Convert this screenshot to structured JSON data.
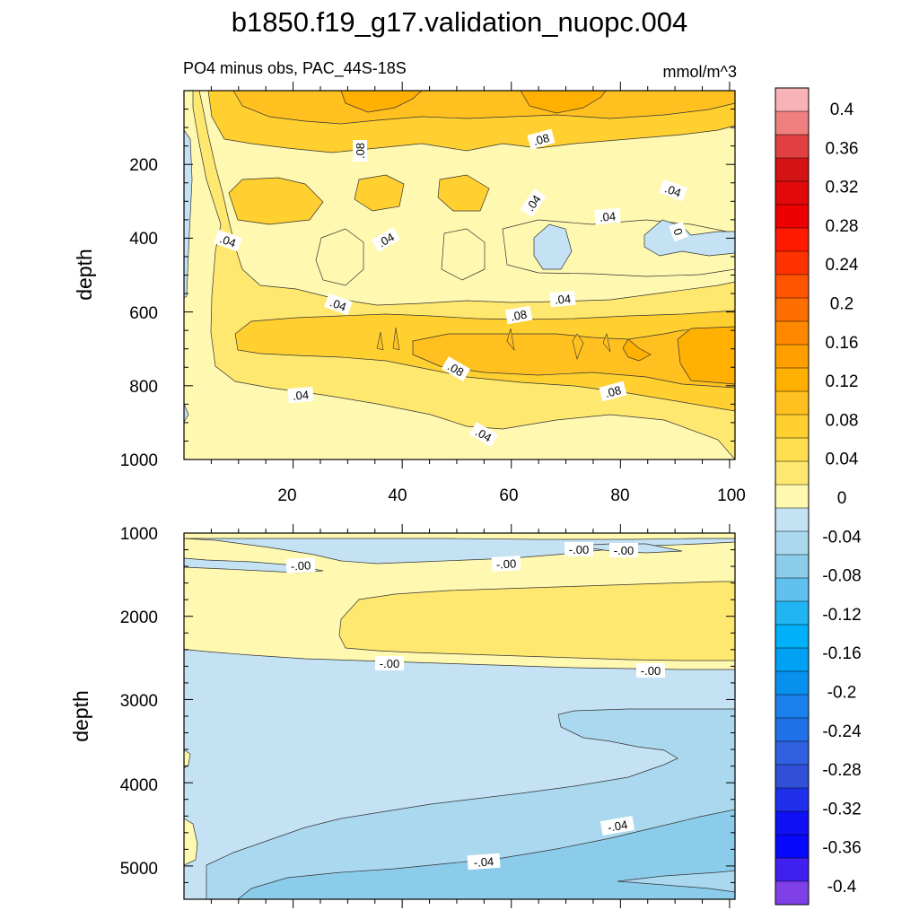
{
  "chart_data": {
    "type": "contour",
    "title": "b1850.f19_g17.validation_nuopc.004",
    "subtitle_left": "PO4 minus obs, PAC_44S-18S",
    "subtitle_right": "mmol/m^3",
    "colorbar": {
      "levels": [
        "0.4",
        "0.36",
        "0.32",
        "0.28",
        "0.24",
        "0.2",
        "0.16",
        "0.12",
        "0.08",
        "0.04",
        "0",
        "-0.04",
        "-0.08",
        "-0.12",
        "-0.16",
        "-0.2",
        "-0.24",
        "-0.28",
        "-0.32",
        "-0.36",
        "-0.4"
      ],
      "colors": [
        "#f7b3b5",
        "#f08080",
        "#e04040",
        "#d41414",
        "#e00808",
        "#ee0000",
        "#ff1a00",
        "#ff3300",
        "#ff5500",
        "#ff6e00",
        "#ff8800",
        "#ffa000",
        "#ffb000",
        "#ffc020",
        "#ffd030",
        "#ffde50",
        "#ffe870",
        "#fff8b0",
        "#c4e2f4",
        "#aad8ee",
        "#8ccceb",
        "#60c0ef",
        "#20b4f2",
        "#00b0f8",
        "#00a0f2",
        "#0890ee",
        "#1a80ec",
        "#2070e8",
        "#3060e0",
        "#3050d8",
        "#2030ea",
        "#1010f4",
        "#0808fa",
        "#4020ee",
        "#8040e8"
      ]
    },
    "upper_panel": {
      "ylabel": "depth",
      "ylim": [
        0,
        1000
      ],
      "y_reversed": true,
      "xlim": [
        0,
        101
      ],
      "yticks": [
        "200",
        "400",
        "600",
        "800",
        "1000"
      ],
      "xticks": [
        "20",
        "40",
        "60",
        "80",
        "100"
      ],
      "contour_labels": [
        ".08",
        ".08",
        ".04",
        ".04",
        ".04",
        ".04",
        ".04",
        "0",
        ".04",
        ".08",
        ".04",
        ".08",
        ".08",
        ".04",
        ".04"
      ]
    },
    "lower_panel": {
      "ylabel": "depth",
      "ylim": [
        1000,
        5400
      ],
      "y_reversed": true,
      "xlim": [
        0,
        101
      ],
      "yticks": [
        "1000",
        "2000",
        "3000",
        "4000",
        "5000"
      ],
      "contour_labels": [
        "-.00",
        "-.00",
        "-.00",
        "-.00",
        "-.00",
        "-.00",
        "-.04",
        "-.04"
      ]
    }
  }
}
